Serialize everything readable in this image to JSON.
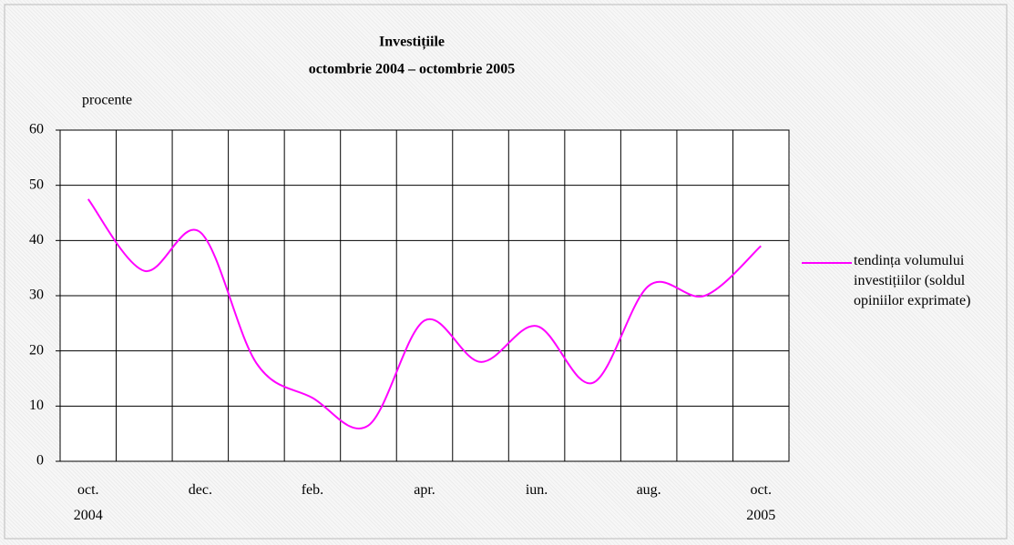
{
  "chart_data": {
    "type": "line",
    "title": "Investițiile",
    "subtitle": "octombrie 2004 – octombrie 2005",
    "y_label": "procente",
    "categories": [
      "oct. 2004",
      null,
      "dec.",
      null,
      "feb.",
      null,
      "apr.",
      null,
      "iun.",
      null,
      "aug.",
      null,
      "oct. 2005"
    ],
    "series": [
      {
        "name": "tendința volumului investițiilor (soldul opiniilor exprimate)",
        "color": "#ff00ff",
        "values": [
          47.5,
          34.5,
          41.5,
          17.8,
          11.5,
          6.5,
          25.5,
          18,
          24.5,
          14.2,
          31.8,
          30,
          39
        ]
      }
    ],
    "ylim": [
      0,
      60
    ],
    "yticks": [
      0,
      10,
      20,
      30,
      40,
      50,
      60
    ],
    "grid": true,
    "smooth": true,
    "legend": "right"
  }
}
